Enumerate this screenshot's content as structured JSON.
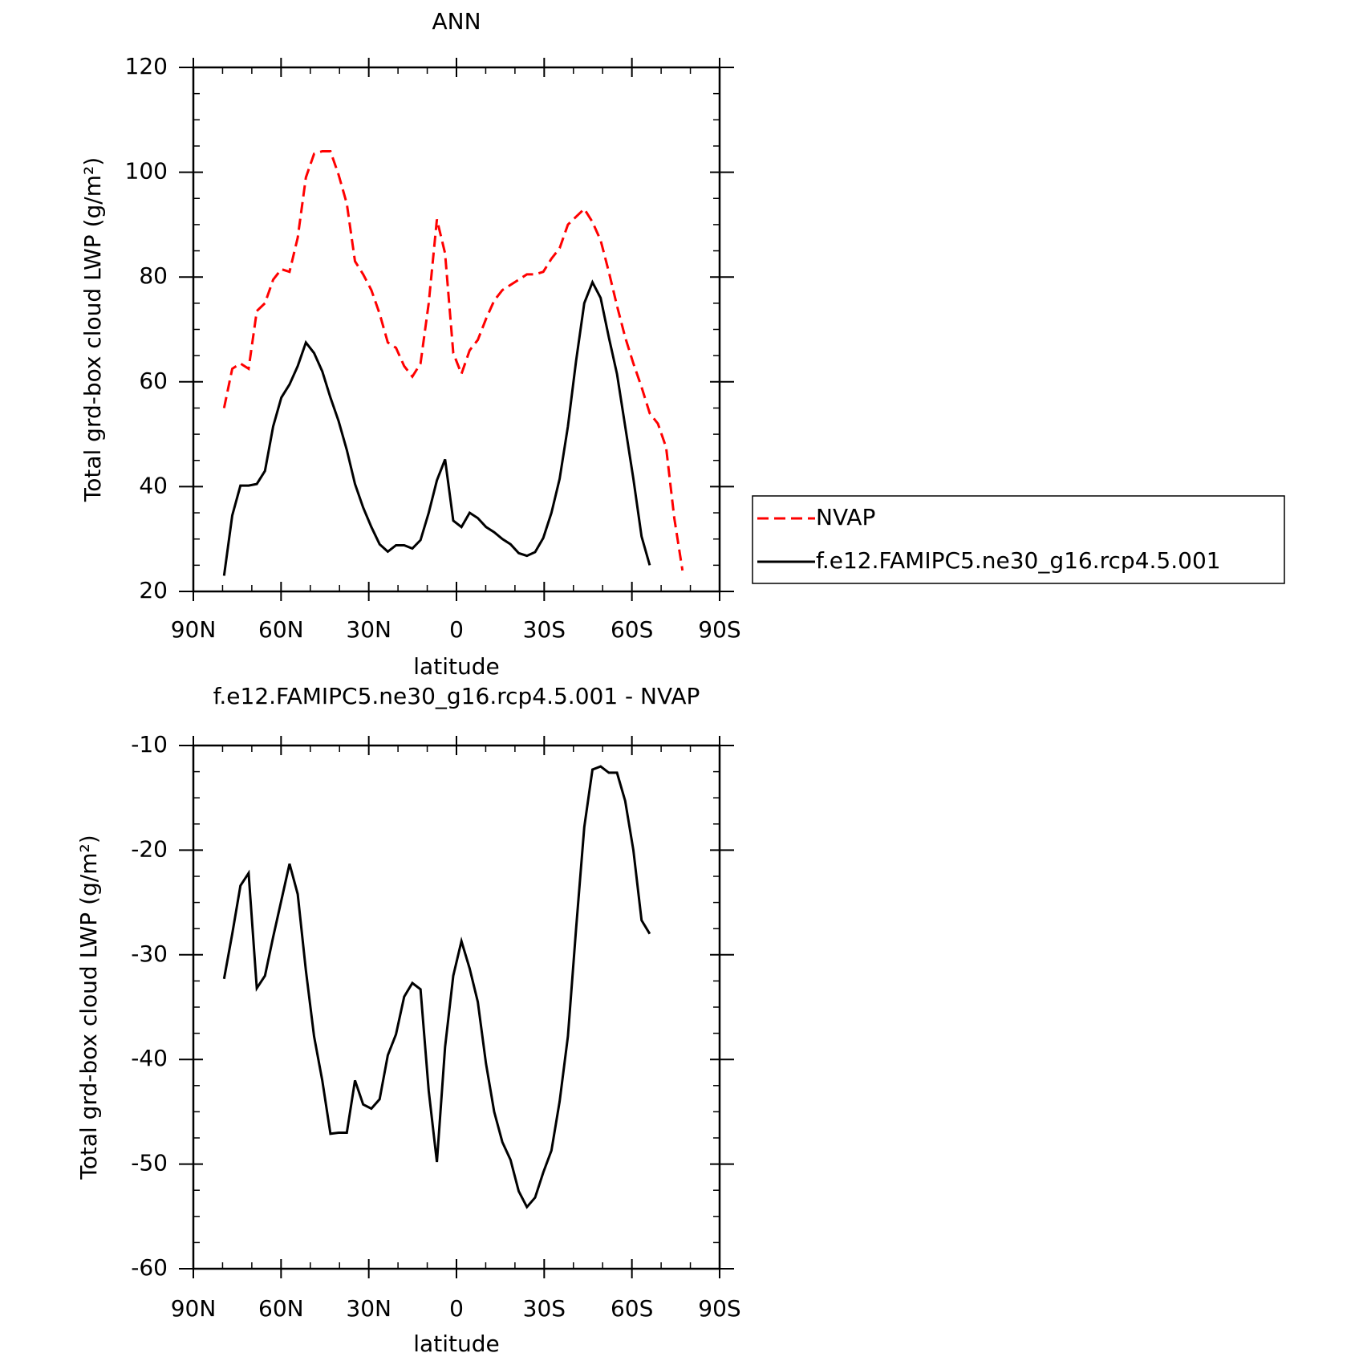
{
  "chart_data": [
    {
      "type": "line",
      "title": "ANN",
      "x_label": "latitude",
      "y_label": "Total grd-box cloud LWP (g/m²)",
      "x": [
        79.5,
        76.7,
        73.9,
        71.1,
        68.3,
        65.5,
        62.7,
        59.9,
        57.1,
        54.3,
        51.5,
        48.7,
        45.9,
        43.1,
        40.3,
        37.5,
        34.7,
        31.9,
        29.1,
        26.3,
        23.5,
        20.7,
        17.9,
        15.1,
        12.3,
        9.5,
        6.7,
        3.9,
        1.1,
        -1.7,
        -4.5,
        -7.3,
        -10.1,
        -12.9,
        -15.7,
        -18.5,
        -21.3,
        -24.1,
        -26.9,
        -29.7,
        -32.5,
        -35.3,
        -38.1,
        -40.9,
        -43.7,
        -46.5,
        -49.3,
        -52.1,
        -54.9,
        -57.7,
        -60.5,
        -63.3,
        -66.1,
        -68.9,
        -71.7,
        -74.5,
        -77.3
      ],
      "series": [
        {
          "name": "NVAP",
          "color": "#ff0000",
          "dash": true,
          "values": [
            55,
            62.5,
            63.5,
            62.5,
            73.5,
            75,
            79.5,
            81.5,
            81,
            87.5,
            99,
            103.5,
            104,
            104,
            99.5,
            94,
            83,
            80.5,
            77.5,
            73,
            67.5,
            66.5,
            63,
            61,
            63.5,
            75,
            91,
            84.5,
            65.5,
            61.5,
            66,
            68,
            72,
            75.5,
            77.5,
            78.5,
            79.5,
            80.5,
            80.5,
            81,
            83.5,
            85.5,
            90,
            91.5,
            93,
            90.5,
            87,
            81,
            74.5,
            68.5,
            63.5,
            59,
            54,
            52,
            47.5,
            34,
            24
          ]
        },
        {
          "name": "f.e12.FAMIPC5.ne30_g16.rcp4.5.001",
          "color": "#000000",
          "dash": false,
          "values": [
            23,
            34.5,
            40.2,
            40.2,
            40.5,
            43,
            51.5,
            57,
            59.5,
            63,
            67.5,
            65.5,
            62,
            57,
            52.5,
            47,
            40.5,
            36,
            32.3,
            29,
            27.6,
            28.8,
            28.8,
            28.2,
            29.8,
            35,
            41.2,
            45.2,
            33.5,
            32.3,
            35,
            34,
            32.3,
            31.3,
            30,
            29,
            27.3,
            26.8,
            27.5,
            30.2,
            35,
            41.5,
            51.5,
            64,
            75,
            79,
            76,
            68.5,
            61.5,
            51.5,
            41.5,
            30.5,
            25,
            null,
            null,
            null,
            null
          ]
        }
      ],
      "xlim": [
        90,
        -90
      ],
      "xticks": [
        {
          "value": 90,
          "label": "90N"
        },
        {
          "value": 60,
          "label": "60N"
        },
        {
          "value": 30,
          "label": "30N"
        },
        0,
        {
          "value": -30,
          "label": "30S"
        },
        {
          "value": -60,
          "label": "60S"
        },
        {
          "value": -90,
          "label": "90S"
        }
      ],
      "ylim": [
        20,
        120
      ],
      "yticks": [
        20,
        40,
        60,
        80,
        100,
        120
      ],
      "legend": "right"
    },
    {
      "type": "line",
      "title": "f.e12.FAMIPC5.ne30_g16.rcp4.5.001 - NVAP",
      "x_label": "latitude",
      "y_label": "Total grd-box cloud LWP (g/m²)",
      "x": [
        79.5,
        76.7,
        73.9,
        71.1,
        68.3,
        65.5,
        62.7,
        59.9,
        57.1,
        54.3,
        51.5,
        48.7,
        45.9,
        43.1,
        40.3,
        37.5,
        34.7,
        31.9,
        29.1,
        26.3,
        23.5,
        20.7,
        17.9,
        15.1,
        12.3,
        9.5,
        6.7,
        3.9,
        1.1,
        -1.7,
        -4.5,
        -7.3,
        -10.1,
        -12.9,
        -15.7,
        -18.5,
        -21.3,
        -24.1,
        -26.9,
        -29.7,
        -32.5,
        -35.3,
        -38.1,
        -40.9,
        -43.7,
        -46.5,
        -49.3,
        -52.1,
        -54.9,
        -57.7,
        -60.5,
        -63.3,
        -66.1,
        -68.9,
        -71.7,
        -74.5,
        -77.3
      ],
      "series": [
        {
          "color": "#000000",
          "dash": false,
          "values": [
            -32.3,
            -28,
            -23.4,
            -22.2,
            -33.2,
            -32,
            -28.3,
            -24.8,
            -21.3,
            -24.2,
            -31.5,
            -37.8,
            -42,
            -47.1,
            -47,
            -47,
            -42,
            -44.3,
            -44.7,
            -43.8,
            -39.6,
            -37.6,
            -34,
            -32.7,
            -33.3,
            -43,
            -49.8,
            -38.8,
            -32,
            -28.7,
            -31.3,
            -34.5,
            -40.4,
            -45,
            -47.9,
            -49.6,
            -52.6,
            -54.1,
            -53.2,
            -50.8,
            -48.7,
            -44,
            -37.8,
            -27.5,
            -17.8,
            -12.3,
            -12,
            -12.6,
            -12.6,
            -15.3,
            -20,
            -26.7,
            -28,
            null,
            null,
            null,
            null
          ]
        }
      ],
      "xlim": [
        90,
        -90
      ],
      "xticks": [
        {
          "value": 90,
          "label": "90N"
        },
        {
          "value": 60,
          "label": "60N"
        },
        {
          "value": 30,
          "label": "30N"
        },
        0,
        {
          "value": -30,
          "label": "30S"
        },
        {
          "value": -60,
          "label": "60S"
        },
        {
          "value": -90,
          "label": "90S"
        }
      ],
      "ylim": [
        -60,
        -10
      ],
      "yticks": [
        -60,
        -50,
        -40,
        -30,
        -20,
        -10
      ]
    }
  ]
}
